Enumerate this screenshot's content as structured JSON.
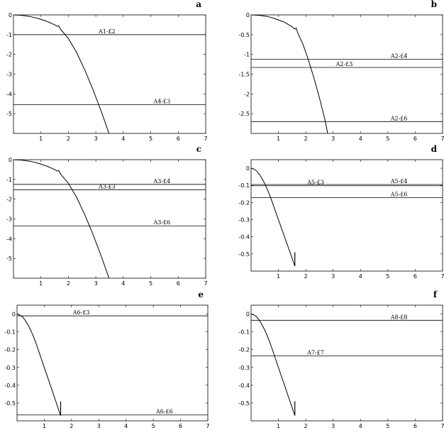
{
  "chart_data": [
    {
      "type": "line",
      "panel_label": "a",
      "xlim": [
        0,
        7
      ],
      "ylim": [
        -6,
        0
      ],
      "x_ticks": [
        1,
        2,
        3,
        4,
        5,
        6,
        7
      ],
      "y_ticks": [
        0,
        -1,
        -2,
        -3,
        -4,
        -5
      ],
      "y_tick_labels": [
        "0",
        "-1",
        "-2",
        "-3",
        "-4",
        "-5"
      ],
      "curve": {
        "x": [
          0,
          0.3,
          0.6,
          0.9,
          1.2,
          1.5,
          1.6,
          1.65,
          1.7,
          2.0,
          2.3,
          2.6,
          2.9,
          3.2,
          3.48
        ],
        "y": [
          0,
          -0.02,
          -0.08,
          -0.18,
          -0.32,
          -0.5,
          -0.58,
          -0.55,
          -0.7,
          -1.2,
          -1.9,
          -2.8,
          -3.8,
          -4.9,
          -6.0
        ]
      },
      "cusp": null,
      "hlines": [
        {
          "y": -1.0,
          "label": "A1-£2",
          "label_x": 3.1
        },
        {
          "y": -4.55,
          "label": "A4-£3",
          "label_x": 5.1
        }
      ]
    },
    {
      "type": "line",
      "panel_label": "b",
      "xlim": [
        0,
        7
      ],
      "ylim": [
        -3,
        0
      ],
      "x_ticks": [
        1,
        2,
        3,
        4,
        5,
        6,
        7
      ],
      "y_ticks": [
        0,
        -0.5,
        -1,
        -1.5,
        -2,
        -2.5
      ],
      "y_tick_labels": [
        "0",
        "-0.5",
        "-1",
        "-1.5",
        "-2",
        "-2.5"
      ],
      "curve": {
        "x": [
          0,
          0.3,
          0.6,
          0.9,
          1.2,
          1.5,
          1.6,
          1.65,
          1.7,
          1.9,
          2.1,
          2.3,
          2.5,
          2.7,
          2.8
        ],
        "y": [
          0,
          -0.01,
          -0.04,
          -0.1,
          -0.18,
          -0.3,
          -0.36,
          -0.33,
          -0.45,
          -0.75,
          -1.15,
          -1.6,
          -2.1,
          -2.65,
          -3.0
        ]
      },
      "cusp": null,
      "hlines": [
        {
          "y": -1.12,
          "label": "A2-£4",
          "label_x": 5.1
        },
        {
          "y": -1.33,
          "label": "A2-£3",
          "label_x": 3.1
        },
        {
          "y": -2.7,
          "label": "A2-£6",
          "label_x": 5.1
        }
      ]
    },
    {
      "type": "line",
      "panel_label": "c",
      "xlim": [
        0,
        7
      ],
      "ylim": [
        -6,
        0
      ],
      "x_ticks": [
        1,
        2,
        3,
        4,
        5,
        6,
        7
      ],
      "y_ticks": [
        0,
        -1,
        -2,
        -3,
        -4,
        -5
      ],
      "y_tick_labels": [
        "0",
        "-1",
        "-2",
        "-3",
        "-4",
        "-5"
      ],
      "curve": {
        "x": [
          0,
          0.3,
          0.6,
          0.9,
          1.2,
          1.5,
          1.6,
          1.65,
          1.7,
          2.0,
          2.3,
          2.6,
          2.9,
          3.2,
          3.48
        ],
        "y": [
          0,
          -0.02,
          -0.08,
          -0.18,
          -0.32,
          -0.5,
          -0.58,
          -0.55,
          -0.7,
          -1.2,
          -1.9,
          -2.8,
          -3.8,
          -4.9,
          -6.0
        ]
      },
      "cusp": null,
      "hlines": [
        {
          "y": -1.25,
          "label": "A3-£4",
          "label_x": 5.1
        },
        {
          "y": -1.52,
          "label": "A3-£3",
          "label_x": 3.1
        },
        {
          "y": -3.35,
          "label": "A3-£6",
          "label_x": 5.1
        }
      ]
    },
    {
      "type": "line",
      "panel_label": "d",
      "xlim": [
        0,
        7
      ],
      "ylim": [
        -0.6,
        0.05
      ],
      "x_ticks": [
        1,
        2,
        3,
        4,
        5,
        6,
        7
      ],
      "y_ticks": [
        0,
        -0.1,
        -0.2,
        -0.3,
        -0.4,
        -0.5
      ],
      "y_tick_labels": [
        "0",
        "-0.1",
        "-0.2",
        "-0.3",
        "-0.4",
        "-0.5"
      ],
      "curve": {
        "x": [
          0,
          0.1,
          0.2,
          0.3,
          0.4,
          0.5,
          0.6,
          0.7,
          0.8,
          0.9,
          1.0,
          1.1,
          1.2,
          1.3,
          1.4,
          1.5,
          1.55,
          1.6
        ],
        "y": [
          0,
          -0.005,
          -0.015,
          -0.035,
          -0.06,
          -0.09,
          -0.125,
          -0.165,
          -0.21,
          -0.255,
          -0.3,
          -0.345,
          -0.39,
          -0.435,
          -0.48,
          -0.525,
          -0.55,
          -0.57
        ]
      },
      "cusp": {
        "x": 1.6,
        "y_top": -0.49,
        "y_bottom": -0.57
      },
      "hlines": [
        {
          "y": -0.095,
          "label": "A5-£4",
          "label_x": 5.1
        },
        {
          "y": -0.102,
          "label": "A5-£3",
          "label_x": 2.05
        },
        {
          "y": -0.172,
          "label": "A5-£6",
          "label_x": 5.1
        }
      ]
    },
    {
      "type": "line",
      "panel_label": "e",
      "xlim": [
        0,
        7
      ],
      "ylim": [
        -0.6,
        0.05
      ],
      "x_ticks": [
        1,
        2,
        3,
        4,
        5,
        6,
        7
      ],
      "y_ticks": [
        0,
        -0.1,
        -0.2,
        -0.3,
        -0.4,
        -0.5
      ],
      "y_tick_labels": [
        "0",
        "-0.1",
        "-0.2",
        "-0.3",
        "-0.4",
        "-0.5"
      ],
      "curve": {
        "x": [
          0,
          0.1,
          0.2,
          0.3,
          0.4,
          0.5,
          0.6,
          0.7,
          0.8,
          0.9,
          1.0,
          1.1,
          1.2,
          1.3,
          1.4,
          1.5,
          1.55,
          1.6
        ],
        "y": [
          0,
          -0.005,
          -0.015,
          -0.035,
          -0.06,
          -0.09,
          -0.125,
          -0.165,
          -0.21,
          -0.255,
          -0.3,
          -0.345,
          -0.39,
          -0.435,
          -0.48,
          -0.525,
          -0.55,
          -0.57
        ]
      },
      "cusp": {
        "x": 1.6,
        "y_top": -0.49,
        "y_bottom": -0.57
      },
      "hlines": [
        {
          "y": -0.01,
          "label": "A6-£3",
          "label_x": 2.05
        },
        {
          "y": -0.567,
          "label": "A6-£6",
          "label_x": 5.1
        }
      ]
    },
    {
      "type": "line",
      "panel_label": "f",
      "xlim": [
        0,
        7
      ],
      "ylim": [
        -0.6,
        0.05
      ],
      "x_ticks": [
        1,
        2,
        3,
        4,
        5,
        6,
        7
      ],
      "y_ticks": [
        0,
        -0.1,
        -0.2,
        -0.3,
        -0.4,
        -0.5
      ],
      "y_tick_labels": [
        "0",
        "-0.1",
        "-0.2",
        "-0.3",
        "-0.4",
        "-0.5"
      ],
      "curve": {
        "x": [
          0,
          0.1,
          0.2,
          0.3,
          0.4,
          0.5,
          0.6,
          0.7,
          0.8,
          0.9,
          1.0,
          1.1,
          1.2,
          1.3,
          1.4,
          1.5,
          1.55,
          1.6
        ],
        "y": [
          0,
          -0.005,
          -0.015,
          -0.035,
          -0.06,
          -0.09,
          -0.125,
          -0.165,
          -0.21,
          -0.255,
          -0.3,
          -0.345,
          -0.39,
          -0.435,
          -0.48,
          -0.525,
          -0.55,
          -0.57
        ]
      },
      "cusp": {
        "x": 1.6,
        "y_top": -0.49,
        "y_bottom": -0.57
      },
      "hlines": [
        {
          "y": -0.035,
          "label": "A8-£8",
          "label_x": 5.1
        },
        {
          "y": -0.235,
          "label": "A7-£7",
          "label_x": 2.05
        }
      ]
    }
  ]
}
